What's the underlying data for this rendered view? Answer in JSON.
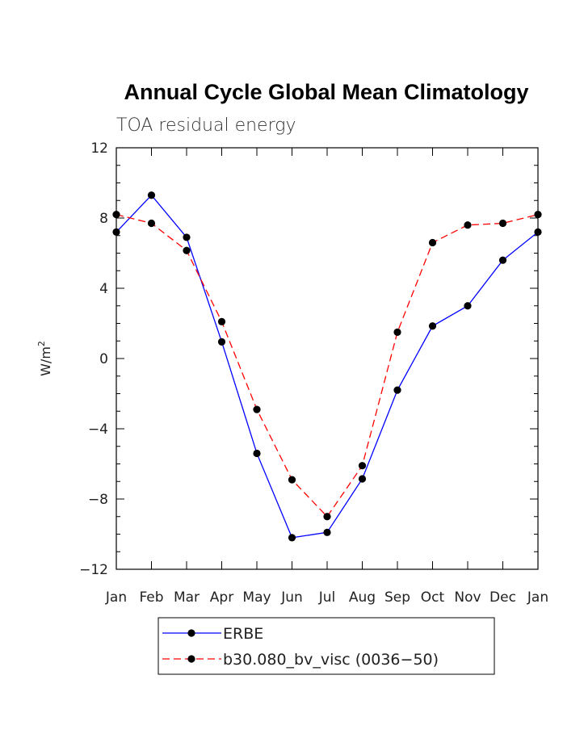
{
  "chart_data": {
    "type": "line",
    "title": "Annual Cycle Global Mean Climatology",
    "subtitle": "TOA residual energy",
    "ylabel": "W/m",
    "ylabel_superscript": "2",
    "categories": [
      "Jan",
      "Feb",
      "Mar",
      "Apr",
      "May",
      "Jun",
      "Jul",
      "Aug",
      "Sep",
      "Oct",
      "Nov",
      "Dec",
      "Jan"
    ],
    "ylim": [
      -12,
      12
    ],
    "yticks": [
      -12,
      -8,
      -4,
      0,
      4,
      8,
      12
    ],
    "ytick_labels": [
      "−12",
      "−8",
      "−4",
      "0",
      "4",
      "8",
      "12"
    ],
    "series": [
      {
        "name": "ERBE",
        "color": "#0000ff",
        "dash": "solid",
        "values": [
          7.2,
          9.3,
          6.9,
          0.95,
          -5.4,
          -10.2,
          -9.9,
          -6.85,
          -1.8,
          1.85,
          3.0,
          5.6,
          7.2
        ]
      },
      {
        "name": "b30.080_bv_visc (0036−50)",
        "color": "#ff0000",
        "dash": "dashed",
        "values": [
          8.2,
          7.7,
          6.15,
          2.1,
          -2.9,
          -6.9,
          -9.0,
          -6.1,
          1.5,
          6.6,
          7.6,
          7.7,
          8.2
        ]
      }
    ],
    "legend_position": "bottom",
    "grid": false
  }
}
